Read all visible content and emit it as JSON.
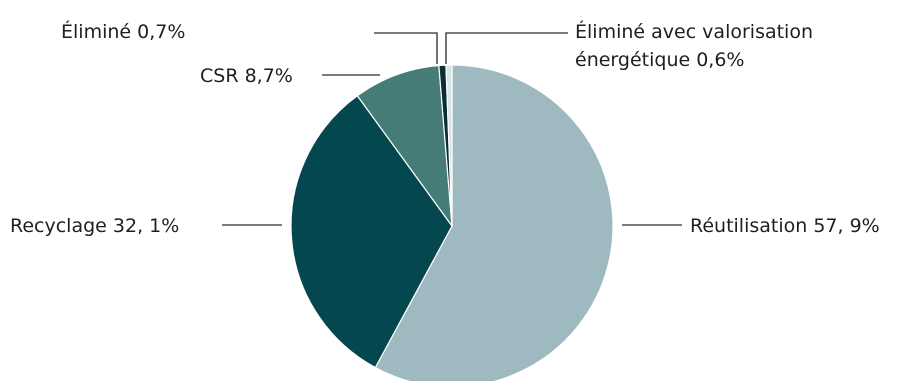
{
  "chart_data": {
    "type": "pie",
    "title": "",
    "slices": [
      {
        "key": "reutilisation",
        "label": "Réutilisation 57, 9%",
        "value": 57.9,
        "color": "#9fb9c1"
      },
      {
        "key": "recyclage",
        "label": "Recyclage 32, 1%",
        "value": 32.1,
        "color": "#04474f"
      },
      {
        "key": "csr",
        "label": "CSR 8,7%",
        "value": 8.7,
        "color": "#457c78"
      },
      {
        "key": "elimine",
        "label": "Éliminé 0,7%",
        "value": 0.7,
        "color": "#0b2e33"
      },
      {
        "key": "elimine-valorisation",
        "label_lines": [
          "Éliminé avec valorisation",
          "énergétique 0,6%"
        ],
        "value": 0.6,
        "color": "#d7e3e6"
      }
    ]
  }
}
